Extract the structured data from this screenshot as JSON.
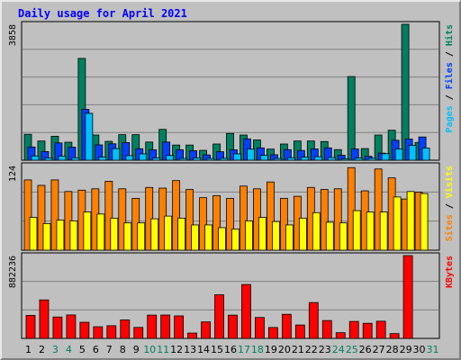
{
  "chart_data": {
    "title": "Daily usage for April 2021",
    "categories": [
      "1",
      "2",
      "3",
      "4",
      "5",
      "6",
      "7",
      "8",
      "9",
      "10",
      "11",
      "12",
      "13",
      "14",
      "15",
      "16",
      "17",
      "18",
      "19",
      "20",
      "21",
      "22",
      "23",
      "24",
      "25",
      "26",
      "27",
      "28",
      "29",
      "30",
      "31"
    ],
    "weekend_days": [
      "3",
      "4",
      "10",
      "11",
      "17",
      "18",
      "24",
      "25",
      "31"
    ],
    "panels": [
      {
        "type": "bar",
        "max_label": "3858",
        "ymax": 3858,
        "ylabel_parts": [
          "Pages",
          "Files",
          "Hits"
        ],
        "ylabel_colors": [
          "#00c0ff",
          "#0040ff",
          "#008060"
        ],
        "series": [
          {
            "name": "Hits",
            "color": "#008060",
            "values": [
              735,
              545,
              680,
              510,
              2890,
              715,
              535,
              725,
              725,
              515,
              875,
              430,
              430,
              280,
              460,
              760,
              715,
              575,
              315,
              460,
              545,
              545,
              530,
              300,
              2375,
              330,
              715,
              850,
              3858,
              505
            ]
          },
          {
            "name": "Files",
            "color": "#0040ff",
            "values": [
              375,
              245,
              490,
              370,
              1445,
              435,
              465,
              500,
              325,
              295,
              515,
              295,
              270,
              150,
              240,
              295,
              605,
              350,
              155,
              300,
              275,
              320,
              350,
              140,
              320,
              110,
              200,
              565,
              600,
              660
            ]
          },
          {
            "name": "Pages",
            "color": "#00c0ff",
            "values": [
              120,
              65,
              115,
              70,
              1330,
              90,
              330,
              130,
              180,
              65,
              135,
              50,
              65,
              50,
              55,
              180,
              315,
              140,
              50,
              70,
              85,
              100,
              75,
              40,
              60,
              55,
              185,
              320,
              420,
              345
            ]
          }
        ]
      },
      {
        "type": "bar",
        "max_label": "124",
        "ymax": 124,
        "ylabel_parts": [
          "Sites",
          "Visits"
        ],
        "ylabel_colors": [
          "#ff8000",
          "#ffff00"
        ],
        "series": [
          {
            "name": "Visits",
            "color": "#ff8000",
            "values": [
              103,
              95,
              103,
              86,
              88,
              90,
              101,
              90,
              76,
              92,
              91,
              102,
              89,
              77,
              80,
              76,
              94,
              90,
              100,
              76,
              79,
              92,
              89,
              90,
              121,
              87,
              119,
              106,
              75,
              85
            ]
          },
          {
            "name": "Sites",
            "color": "#ffff00",
            "values": [
              48,
              39,
              44,
              43,
              56,
              53,
              47,
              40,
              40,
              46,
              50,
              47,
              37,
              37,
              33,
              31,
              43,
              48,
              42,
              37,
              47,
              55,
              41,
              40,
              58,
              56,
              56,
              78,
              86,
              83
            ]
          }
        ]
      },
      {
        "type": "bar",
        "max_label": "882236",
        "ymax": 882236,
        "ylabel_parts": [
          "KBytes"
        ],
        "ylabel_colors": [
          "#ff0000"
        ],
        "series": [
          {
            "name": "KBytes",
            "color": "#ff0000",
            "values": [
              245000,
              410000,
              228000,
              250000,
              172000,
              124000,
              135000,
              197000,
              117000,
              248000,
              249000,
              240000,
              57000,
              176000,
              465000,
              248000,
              574000,
              223000,
              116000,
              257000,
              143000,
              382000,
              190000,
              61000,
              181000,
              161000,
              183000,
              51000,
              882236,
              0
            ]
          }
        ]
      }
    ]
  }
}
